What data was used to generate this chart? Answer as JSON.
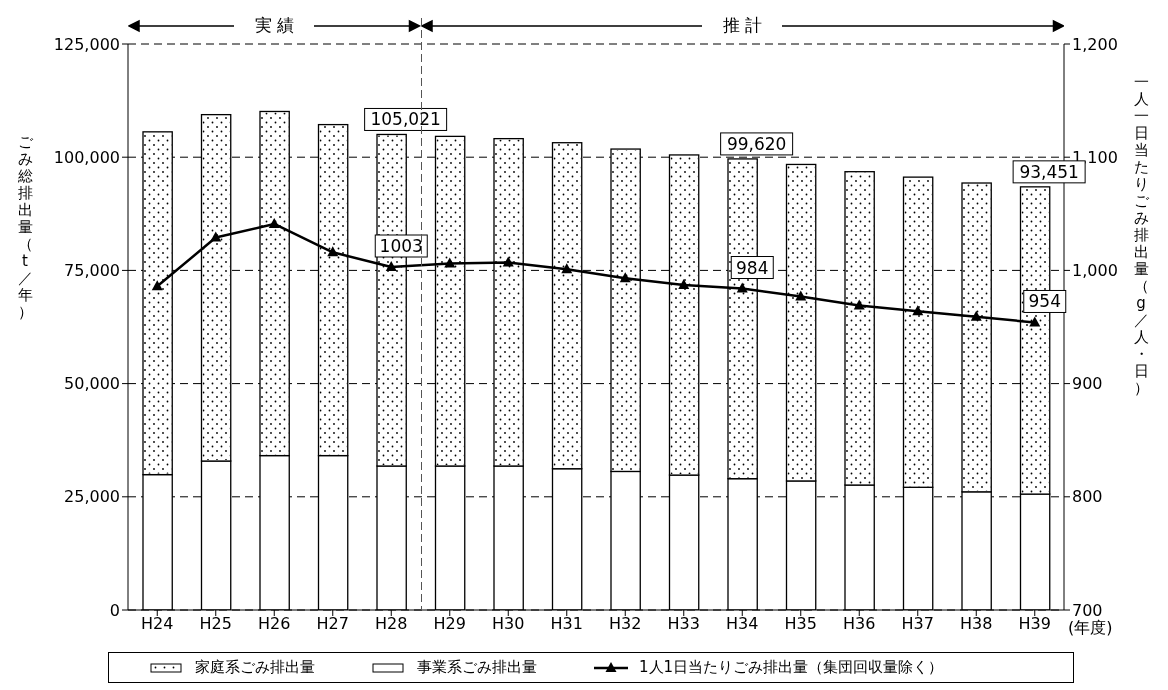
{
  "chart_data": {
    "type": "bar",
    "stacked": true,
    "xlabel": "(年度)",
    "ylabel": "ごみ総排出量（t／年）",
    "y2label": "一人一日当たりごみ排出量（g／人・日）",
    "categories": [
      "H24",
      "H25",
      "H26",
      "H27",
      "H28",
      "H29",
      "H30",
      "H31",
      "H32",
      "H33",
      "H34",
      "H35",
      "H36",
      "H37",
      "H38",
      "H39"
    ],
    "series": [
      {
        "name": "事業系ごみ排出量",
        "color": "#ffffff",
        "values": [
          29900,
          32900,
          34100,
          34100,
          31800,
          31800,
          31800,
          31200,
          30600,
          29800,
          29000,
          28500,
          27600,
          27100,
          26100,
          25600
        ]
      },
      {
        "name": "家庭系ごみ排出量",
        "color": "#ffffff",
        "values": [
          75700,
          76500,
          76000,
          73100,
          73221,
          72800,
          72300,
          72000,
          71200,
          70700,
          70620,
          69900,
          69200,
          68500,
          68200,
          67851
        ]
      },
      {
        "name": "1人1日当たりごみ排出量（集団回収量除く）",
        "type": "line",
        "axis": "y2",
        "color": "#000000",
        "marker": "triangle",
        "line_style": "solid",
        "values": [
          986,
          1029,
          1041,
          1016,
          1003,
          1006,
          1007,
          1001,
          993,
          987,
          984,
          977,
          969,
          964,
          959,
          954
        ],
        "value_labels": [
          null,
          null,
          null,
          null,
          "1003",
          null,
          null,
          null,
          null,
          null,
          "984",
          null,
          null,
          null,
          null,
          "954"
        ]
      }
    ],
    "totals": [
      null,
      null,
      null,
      null,
      "105,021",
      null,
      null,
      null,
      null,
      null,
      "99,620",
      null,
      null,
      null,
      null,
      "93,451"
    ],
    "ylim": [
      0,
      125000
    ],
    "yticks": [
      0,
      {
        "value": 25000,
        "label": "25,000"
      },
      {
        "value": 50000,
        "label": "50,000"
      },
      {
        "value": 75000,
        "label": "75,000"
      },
      {
        "value": 100000,
        "label": "100,000"
      },
      {
        "value": 125000,
        "label": "125,000"
      }
    ],
    "y2lim": [
      700,
      1200
    ],
    "y2ticks": [
      700,
      800,
      900,
      {
        "value": 1000,
        "label": "1,000"
      },
      {
        "value": 1100,
        "label": "1,100"
      },
      {
        "value": 1200,
        "label": "1,200"
      }
    ],
    "annotations": [
      "実 績",
      "推 計"
    ],
    "ref_lines": [
      {
        "axis": "x",
        "value": "H28",
        "line_style": "dashed",
        "color": "#555555"
      }
    ],
    "grid": "y",
    "legend": "bottom"
  }
}
